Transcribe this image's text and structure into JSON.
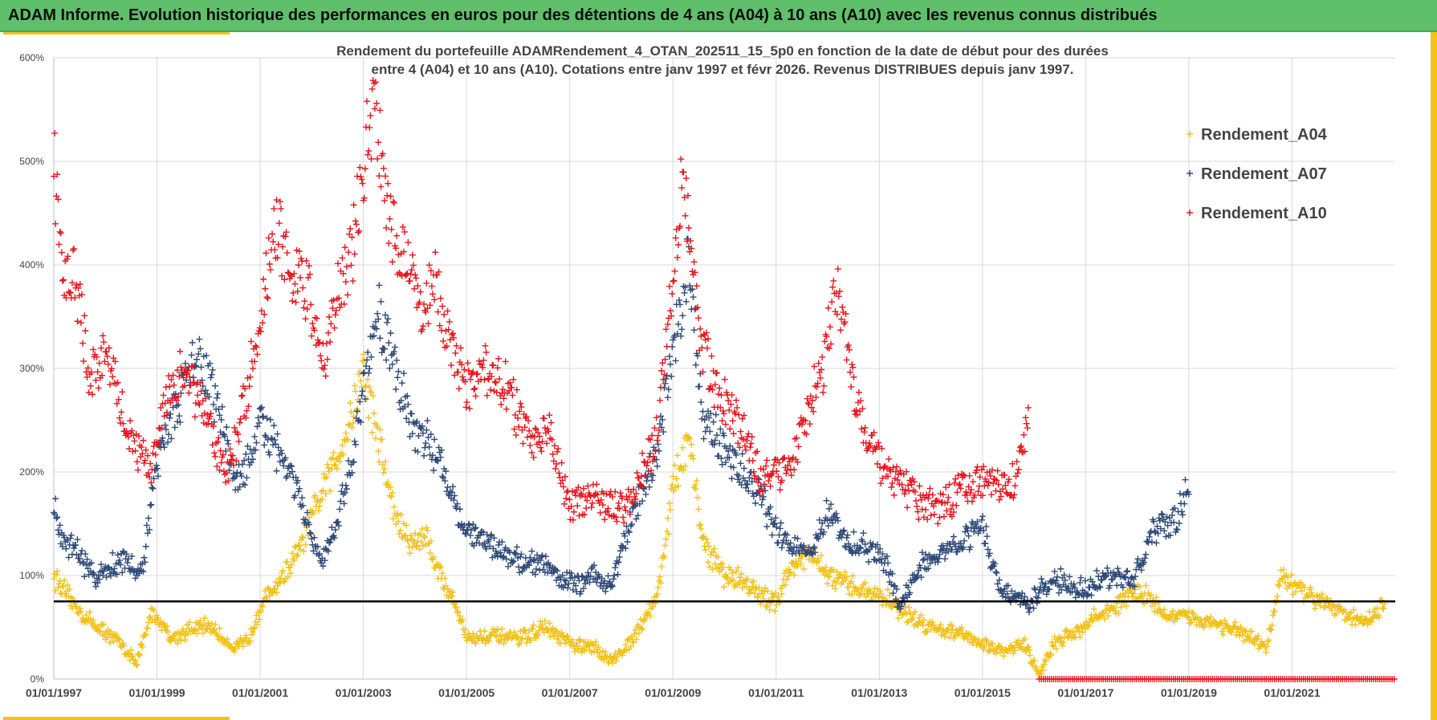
{
  "banner": {
    "title": "ADAM Informe. Evolution historique des performances en euros pour des détentions de 4 ans (A04) à 10 ans (A10) avec les revenus connus distribués"
  },
  "chart_data": {
    "type": "scatter",
    "title_line1": "Rendement du portefeuille ADAMRendement_4_OTAN_202511_15_5p0  en fonction de la date de début pour des durées",
    "title_line2": "entre 4 (A04) et 10 ans (A10). Cotations entre janv 1997 et févr 2026. Revenus DISTRIBUES depuis janv 1997.",
    "y_ticks": [
      "0%",
      "100%",
      "200%",
      "300%",
      "400%",
      "500%",
      "600%"
    ],
    "ylim": [
      0,
      600
    ],
    "x_ticks": [
      "01/01/1997",
      "01/01/1999",
      "01/01/2001",
      "01/01/2003",
      "01/01/2005",
      "01/01/2007",
      "01/01/2009",
      "01/01/2011",
      "01/01/2013",
      "01/01/2015",
      "01/01/2017",
      "01/01/2019",
      "01/01/2021"
    ],
    "xlim": [
      "1997-01-01",
      "2023-01-01"
    ],
    "reference_line": 75,
    "grid": true,
    "legend_position": "right",
    "colors": {
      "A04": "#f2c21b",
      "A07": "#2e4a78",
      "A10": "#e8161e",
      "reference": "#000000"
    },
    "series": [
      {
        "name": "Rendement_A04",
        "color": "#f2c21b",
        "x": [
          1997.0,
          1997.3,
          1997.6,
          1998.0,
          1998.3,
          1998.6,
          1998.9,
          1999.3,
          1999.7,
          2000.0,
          2000.3,
          2000.5,
          2000.8,
          2001.0,
          2001.3,
          2001.6,
          2001.9,
          2002.2,
          2002.5,
          2002.8,
          2003.0,
          2003.3,
          2003.6,
          2003.9,
          2004.2,
          2004.5,
          2004.8,
          2005.0,
          2005.5,
          2006.0,
          2006.5,
          2006.8,
          2007.1,
          2007.5,
          2007.8,
          2008.1,
          2008.4,
          2008.7,
          2009.0,
          2009.3,
          2009.6,
          2010.0,
          2010.4,
          2010.7,
          2011.0,
          2011.3,
          2011.7,
          2012.0,
          2012.4,
          2012.8,
          2013.2,
          2013.6,
          2014.0,
          2014.5,
          2015.0,
          2015.4,
          2015.8,
          2016.1,
          2016.4,
          2016.8,
          2017.2,
          2017.6,
          2017.9,
          2018.2,
          2018.6,
          2019.0,
          2019.4,
          2019.8,
          2020.2,
          2020.5,
          2020.8,
          2021.1,
          2021.4,
          2021.7,
          2022.0,
          2022.3,
          2022.6,
          2022.8
        ],
        "y": [
          100,
          78,
          60,
          45,
          35,
          15,
          65,
          40,
          48,
          52,
          38,
          30,
          40,
          70,
          90,
          110,
          140,
          180,
          215,
          260,
          300,
          230,
          160,
          130,
          140,
          100,
          70,
          40,
          42,
          38,
          50,
          40,
          32,
          30,
          18,
          30,
          55,
          80,
          185,
          230,
          130,
          100,
          95,
          80,
          75,
          110,
          120,
          100,
          90,
          85,
          75,
          60,
          50,
          45,
          35,
          25,
          35,
          5,
          35,
          45,
          60,
          70,
          85,
          80,
          60,
          60,
          55,
          50,
          40,
          30,
          100,
          85,
          80,
          75,
          65,
          55,
          60,
          75
        ]
      },
      {
        "name": "Rendement_A07",
        "color": "#2e4a78",
        "x": [
          1997.0,
          1997.2,
          1997.5,
          1997.8,
          1998.1,
          1998.4,
          1998.7,
          1998.9,
          1999.1,
          1999.4,
          1999.7,
          2000.0,
          2000.3,
          2000.5,
          2000.8,
          2001.0,
          2001.3,
          2001.6,
          2001.9,
          2002.2,
          2002.5,
          2002.8,
          2003.0,
          2003.3,
          2003.6,
          2003.9,
          2004.2,
          2004.5,
          2004.8,
          2005.0,
          2005.5,
          2006.0,
          2006.5,
          2006.8,
          2007.1,
          2007.5,
          2007.8,
          2008.1,
          2008.4,
          2008.7,
          2009.0,
          2009.3,
          2009.6,
          2010.0,
          2010.4,
          2010.7,
          2011.0,
          2011.3,
          2011.7,
          2012.0,
          2012.4,
          2012.8,
          2013.1,
          2013.4,
          2013.8,
          2014.2,
          2014.6,
          2015.0,
          2015.3,
          2015.6,
          2015.9,
          2016.2,
          2016.5,
          2016.8,
          2017.1,
          2017.5,
          2017.9,
          2018.3,
          2018.7,
          2019.0
        ],
        "y": [
          165,
          130,
          120,
          95,
          110,
          115,
          100,
          170,
          240,
          260,
          310,
          290,
          240,
          190,
          210,
          250,
          220,
          200,
          150,
          110,
          150,
          220,
          280,
          350,
          310,
          250,
          230,
          210,
          170,
          140,
          130,
          115,
          110,
          100,
          90,
          100,
          90,
          140,
          180,
          220,
          320,
          400,
          250,
          220,
          195,
          180,
          140,
          130,
          125,
          160,
          130,
          125,
          115,
          70,
          110,
          120,
          135,
          150,
          90,
          80,
          70,
          90,
          95,
          85,
          90,
          100,
          95,
          140,
          150,
          185
        ]
      },
      {
        "name": "Rendement_A10",
        "color": "#e8161e",
        "x": [
          1997.0,
          1997.2,
          1997.4,
          1997.7,
          1998.0,
          1998.3,
          1998.6,
          1998.9,
          1999.2,
          1999.5,
          1999.8,
          2000.1,
          2000.4,
          2000.7,
          2001.0,
          2001.3,
          2001.6,
          2001.9,
          2002.2,
          2002.5,
          2002.8,
          2003.0,
          2003.2,
          2003.5,
          2003.8,
          2004.1,
          2004.4,
          2004.7,
          2005.0,
          2005.4,
          2005.8,
          2006.2,
          2006.6,
          2007.0,
          2007.4,
          2007.8,
          2008.1,
          2008.4,
          2008.7,
          2009.0,
          2009.2,
          2009.5,
          2009.8,
          2010.1,
          2010.4,
          2010.7,
          2011.0,
          2011.3,
          2011.6,
          2011.9,
          2012.2,
          2012.5,
          2012.8,
          2013.1,
          2013.4,
          2013.8,
          2014.2,
          2014.6,
          2015.0,
          2015.3,
          2015.6,
          2015.9
        ],
        "y": [
          500,
          380,
          395,
          290,
          315,
          265,
          220,
          205,
          280,
          300,
          270,
          230,
          200,
          270,
          350,
          440,
          390,
          380,
          300,
          370,
          420,
          500,
          560,
          440,
          410,
          360,
          380,
          320,
          280,
          300,
          280,
          230,
          240,
          170,
          175,
          165,
          170,
          200,
          240,
          400,
          490,
          340,
          280,
          260,
          240,
          190,
          200,
          210,
          260,
          300,
          380,
          280,
          230,
          200,
          190,
          170,
          165,
          185,
          190,
          185,
          190,
          250
        ]
      }
    ],
    "zero_series_from": 2016.1
  }
}
